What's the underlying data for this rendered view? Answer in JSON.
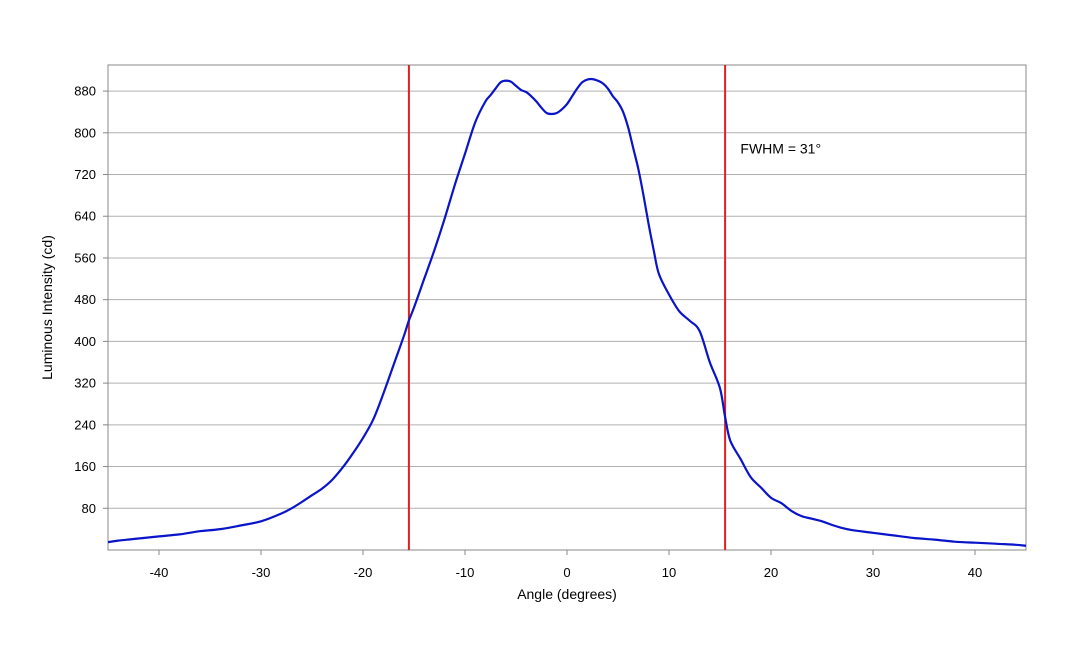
{
  "chart_data": {
    "type": "line",
    "title": "",
    "xlabel": "Angle (degrees)",
    "ylabel": "Luminous Intensity (cd)",
    "xlim": [
      -45,
      45
    ],
    "ylim": [
      0,
      930
    ],
    "xticks": [
      -40,
      -30,
      -20,
      -10,
      0,
      10,
      20,
      30,
      40
    ],
    "xtick_labels": [
      "-40",
      "-30",
      "-20",
      "-10",
      "0",
      "10",
      "20",
      "30",
      "40"
    ],
    "yticks": [
      80,
      160,
      240,
      320,
      400,
      480,
      560,
      640,
      720,
      800,
      880
    ],
    "ytick_labels": [
      "80",
      "160",
      "240",
      "320",
      "400",
      "480",
      "560",
      "640",
      "720",
      "800",
      "880"
    ],
    "grid": "horizontal",
    "legend": "none",
    "series": [
      {
        "color": "#0a14c8",
        "x": [
          -45,
          -44,
          -42,
          -40,
          -38,
          -36,
          -34,
          -32,
          -30,
          -28,
          -27,
          -26,
          -25,
          -24,
          -23,
          -22,
          -21,
          -20,
          -19,
          -18,
          -17,
          -16,
          -15.5,
          -15,
          -14,
          -13,
          -12,
          -11,
          -10,
          -9,
          -8,
          -7.5,
          -7,
          -6.5,
          -6,
          -5.5,
          -5,
          -4.5,
          -4,
          -3.5,
          -3,
          -2.5,
          -2,
          -1.5,
          -1,
          -0.5,
          0,
          0.5,
          1,
          1.5,
          2,
          2.5,
          3,
          3.5,
          4,
          4.5,
          5,
          5.5,
          6,
          6.5,
          7,
          7.5,
          8,
          8.5,
          9,
          10,
          11,
          12,
          13,
          14,
          15,
          15.5,
          16,
          17,
          18,
          19,
          20,
          21,
          22,
          23,
          24,
          25,
          26,
          27,
          28,
          30,
          32,
          34,
          36,
          38,
          40,
          42,
          44,
          45
        ],
        "y": [
          15,
          18,
          22,
          26,
          30,
          36,
          40,
          47,
          55,
          70,
          80,
          92,
          105,
          118,
          135,
          158,
          185,
          215,
          250,
          300,
          355,
          410,
          440,
          465,
          520,
          575,
          635,
          700,
          760,
          820,
          860,
          872,
          885,
          897,
          900,
          898,
          890,
          882,
          878,
          870,
          860,
          848,
          838,
          836,
          838,
          845,
          855,
          870,
          885,
          897,
          902,
          903,
          900,
          895,
          885,
          870,
          858,
          840,
          810,
          770,
          730,
          680,
          625,
          575,
          530,
          490,
          458,
          440,
          420,
          360,
          310,
          255,
          210,
          175,
          140,
          120,
          100,
          90,
          75,
          65,
          60,
          55,
          48,
          42,
          38,
          33,
          28,
          23,
          20,
          16,
          14,
          12,
          10,
          8
        ]
      }
    ],
    "reference_lines": [
      {
        "axis": "x",
        "value": -15.5,
        "color": "#e02020"
      },
      {
        "axis": "x",
        "value": 15.5,
        "color": "#e02020"
      }
    ],
    "annotations": [
      {
        "text": "FWHM = 31°",
        "x": 17,
        "y": 760
      }
    ]
  }
}
